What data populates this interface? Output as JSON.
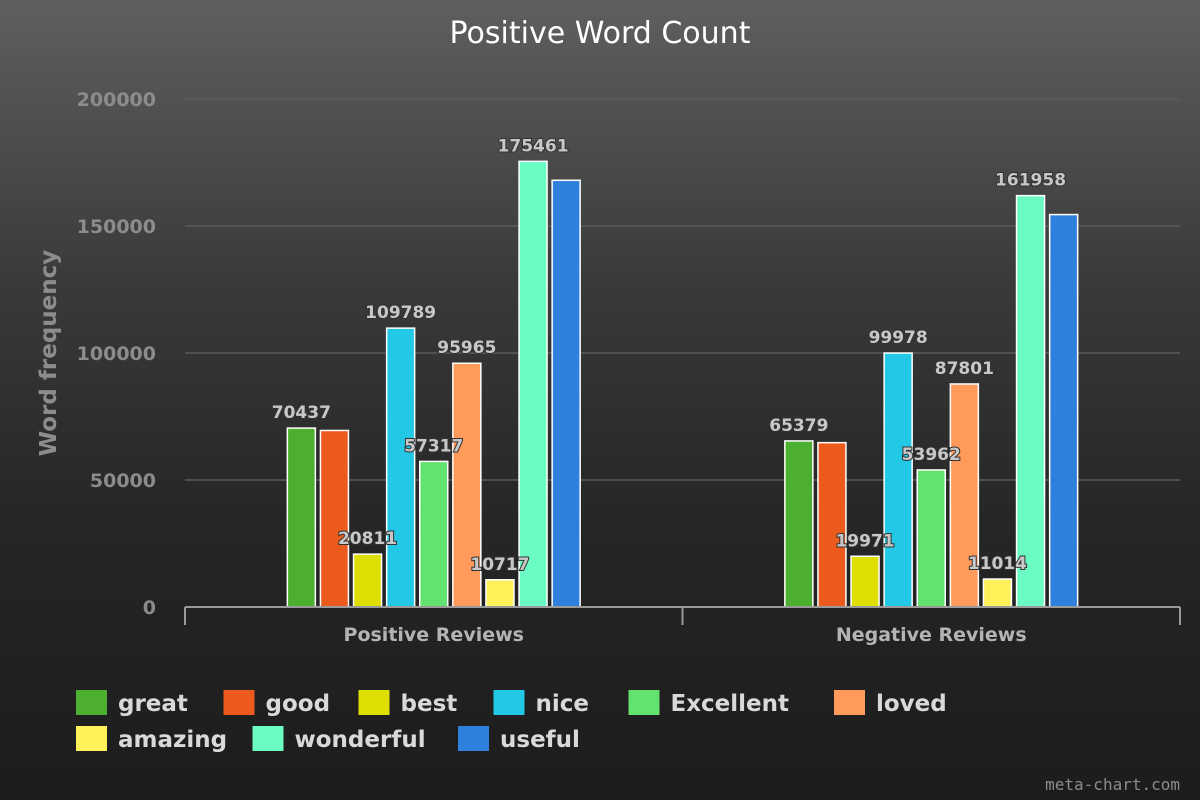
{
  "credit": "meta-chart.com",
  "colors": {
    "background_top": "#5f5f5f",
    "background_bottom": "#1c1c1c",
    "gridline": "#5a5a5a",
    "axis": "#9a9a9a"
  },
  "chart_data": {
    "type": "bar",
    "title": "Positive Word Count",
    "xlabel": "",
    "ylabel": "Word frequency",
    "ylim": [
      0,
      200000
    ],
    "yticks": [
      0,
      50000,
      100000,
      150000,
      200000
    ],
    "grid": true,
    "legend_position": "bottom",
    "categories": [
      "Positive Reviews",
      "Negative Reviews"
    ],
    "series": [
      {
        "name": "great",
        "color": "#4caf2f",
        "values": [
          70437,
          65379
        ],
        "show_label": true
      },
      {
        "name": "good",
        "color": "#ec5a1e",
        "values": [
          69500,
          64700
        ],
        "show_label": false
      },
      {
        "name": "best",
        "color": "#dede00",
        "values": [
          20811,
          19971
        ],
        "show_label": true
      },
      {
        "name": "nice",
        "color": "#22c8e6",
        "values": [
          109789,
          99978
        ],
        "show_label": true
      },
      {
        "name": "Excellent",
        "color": "#62e26f",
        "values": [
          57317,
          53962
        ],
        "show_label": true
      },
      {
        "name": "loved",
        "color": "#ff9a5a",
        "values": [
          95965,
          87801
        ],
        "show_label": true
      },
      {
        "name": "amazing",
        "color": "#fff15a",
        "values": [
          10717,
          11014
        ],
        "show_label": true
      },
      {
        "name": "wonderful",
        "color": "#6afcc3",
        "values": [
          175461,
          161958
        ],
        "show_label": true
      },
      {
        "name": "useful",
        "color": "#2f80dc",
        "values": [
          168000,
          154500
        ],
        "show_label": false
      }
    ]
  }
}
